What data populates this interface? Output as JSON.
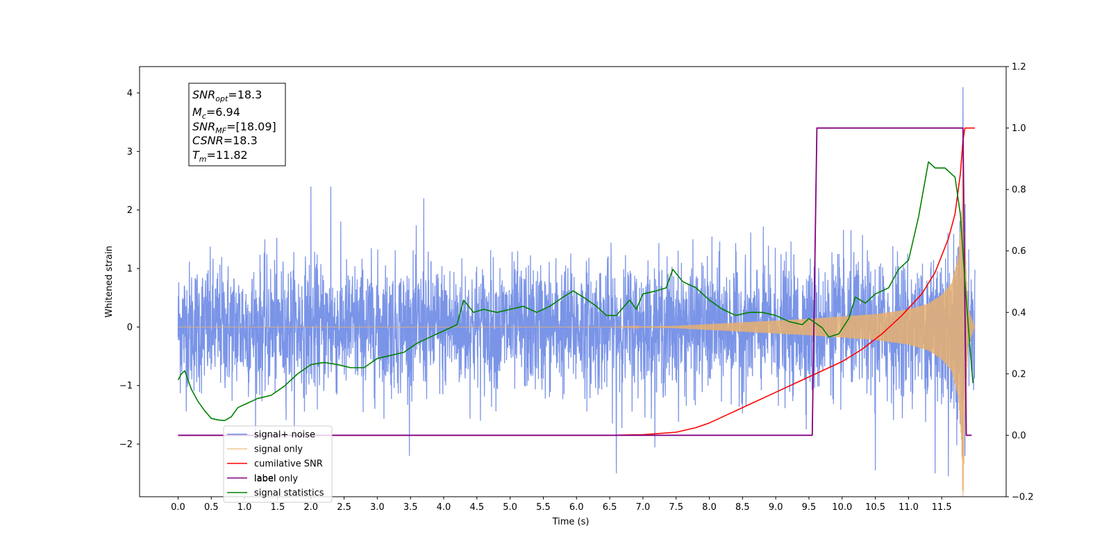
{
  "chart_data": {
    "type": "line",
    "title": "",
    "xlabel": "Time (s)",
    "ylabel": "Whitened strain",
    "xlim": [
      -0.58,
      12.47
    ],
    "ylim": [
      -2.9,
      4.45
    ],
    "y2lim": [
      -0.2,
      1.2
    ],
    "x_ticks": [
      "0.0",
      "0.5",
      "1.0",
      "1.5",
      "2.0",
      "2.5",
      "3.0",
      "3.5",
      "4.0",
      "4.5",
      "5.0",
      "5.5",
      "6.0",
      "6.5",
      "7.0",
      "7.5",
      "8.0",
      "8.5",
      "9.0",
      "9.5",
      "10.0",
      "10.5",
      "11.0",
      "11.5"
    ],
    "y_ticks": [
      "−2",
      "−1",
      "0",
      "1",
      "2",
      "3",
      "4"
    ],
    "y2_ticks": [
      "−0.2",
      "0.0",
      "0.2",
      "0.4",
      "0.6",
      "0.8",
      "1.0",
      "1.2"
    ],
    "grid": false,
    "legend_position": "lower-left",
    "colors": {
      "signal_noise": "#6b88e4",
      "signal_only": "#e8b070",
      "cumulative_snr": "#ff0000",
      "label": "#800080",
      "signal_statistics": "#008000"
    },
    "annotation": {
      "snr_opt": {
        "base": "SNR",
        "sub": "opt",
        "value": "=18.3"
      },
      "mc": {
        "base": "M",
        "sub": "c",
        "value": "=6.94"
      },
      "snr_mf": {
        "base": "SNR",
        "sub": "MF",
        "value": "=[18.09]"
      },
      "csnr": {
        "base": "CSNR",
        "sub": "",
        "value": "=18.3"
      },
      "tm": {
        "base": "T",
        "sub": "m",
        "value": "=11.82"
      }
    },
    "legend": [
      {
        "key": "signal_noise",
        "label": "signal+ noise"
      },
      {
        "key": "signal_only",
        "label": "signal only"
      },
      {
        "key": "cumulative_snr",
        "label": "cumilative SNR"
      },
      {
        "key": "label",
        "label": "label"
      },
      {
        "key": "signal_statistics",
        "label": "signal statistics"
      }
    ],
    "hidden_legend_text": "label only",
    "series": [
      {
        "name": "signal+ noise",
        "axis": "left",
        "description": "Gaussian-like whitened noise plus chirp, sampled densely from 0 to 12 s",
        "t_start": 0.0,
        "t_end": 12.0,
        "noise_std": 0.55,
        "max_peaks": [
          [
            2.0,
            2.4
          ],
          [
            2.3,
            2.4
          ],
          [
            3.7,
            2.2
          ],
          [
            6.6,
            -2.5
          ],
          [
            10.5,
            -2.45
          ],
          [
            11.4,
            -2.5
          ],
          [
            11.6,
            -2.55
          ],
          [
            11.82,
            4.1
          ]
        ]
      },
      {
        "name": "signal only",
        "axis": "left",
        "description": "chirp envelope amplitude vs time",
        "envelope": [
          [
            0.0,
            0.0
          ],
          [
            6.5,
            0.0
          ],
          [
            7.0,
            0.01
          ],
          [
            7.5,
            0.02
          ],
          [
            8.0,
            0.05
          ],
          [
            8.5,
            0.08
          ],
          [
            9.0,
            0.11
          ],
          [
            9.5,
            0.14
          ],
          [
            10.0,
            0.18
          ],
          [
            10.5,
            0.22
          ],
          [
            11.0,
            0.3
          ],
          [
            11.3,
            0.4
          ],
          [
            11.5,
            0.55
          ],
          [
            11.65,
            0.75
          ],
          [
            11.75,
            1.2
          ],
          [
            11.8,
            2.0
          ],
          [
            11.82,
            3.3
          ],
          [
            11.85,
            1.5
          ],
          [
            11.9,
            0.3
          ],
          [
            12.0,
            0.0
          ]
        ]
      },
      {
        "name": "cumilative SNR",
        "axis": "right",
        "points": [
          [
            0.0,
            0.0
          ],
          [
            6.5,
            0.0
          ],
          [
            7.0,
            0.002
          ],
          [
            7.5,
            0.01
          ],
          [
            7.8,
            0.025
          ],
          [
            8.0,
            0.04
          ],
          [
            8.3,
            0.07
          ],
          [
            8.6,
            0.1
          ],
          [
            9.0,
            0.14
          ],
          [
            9.3,
            0.17
          ],
          [
            9.6,
            0.2
          ],
          [
            10.0,
            0.24
          ],
          [
            10.3,
            0.28
          ],
          [
            10.6,
            0.33
          ],
          [
            10.9,
            0.39
          ],
          [
            11.2,
            0.46
          ],
          [
            11.4,
            0.53
          ],
          [
            11.6,
            0.64
          ],
          [
            11.7,
            0.72
          ],
          [
            11.78,
            0.85
          ],
          [
            11.82,
            0.96
          ],
          [
            11.85,
            1.0
          ],
          [
            12.0,
            1.0
          ]
        ]
      },
      {
        "name": "label",
        "axis": "right",
        "points": [
          [
            0.0,
            0.0
          ],
          [
            9.55,
            0.0
          ],
          [
            9.62,
            1.0
          ],
          [
            11.82,
            1.0
          ],
          [
            11.87,
            0.0
          ],
          [
            11.95,
            0.0
          ]
        ]
      },
      {
        "name": "signal statistics",
        "axis": "right",
        "points": [
          [
            0.0,
            0.18
          ],
          [
            0.05,
            0.2
          ],
          [
            0.1,
            0.21
          ],
          [
            0.15,
            0.18
          ],
          [
            0.2,
            0.15
          ],
          [
            0.3,
            0.11
          ],
          [
            0.4,
            0.08
          ],
          [
            0.5,
            0.055
          ],
          [
            0.6,
            0.05
          ],
          [
            0.7,
            0.048
          ],
          [
            0.8,
            0.06
          ],
          [
            0.9,
            0.09
          ],
          [
            1.0,
            0.1
          ],
          [
            1.2,
            0.12
          ],
          [
            1.4,
            0.13
          ],
          [
            1.6,
            0.16
          ],
          [
            1.8,
            0.2
          ],
          [
            2.0,
            0.23
          ],
          [
            2.2,
            0.237
          ],
          [
            2.4,
            0.23
          ],
          [
            2.6,
            0.22
          ],
          [
            2.8,
            0.22
          ],
          [
            3.0,
            0.25
          ],
          [
            3.2,
            0.26
          ],
          [
            3.4,
            0.27
          ],
          [
            3.6,
            0.3
          ],
          [
            3.8,
            0.32
          ],
          [
            4.0,
            0.34
          ],
          [
            4.2,
            0.36
          ],
          [
            4.3,
            0.44
          ],
          [
            4.45,
            0.4
          ],
          [
            4.6,
            0.41
          ],
          [
            4.8,
            0.4
          ],
          [
            5.0,
            0.41
          ],
          [
            5.2,
            0.42
          ],
          [
            5.4,
            0.4
          ],
          [
            5.6,
            0.42
          ],
          [
            5.8,
            0.45
          ],
          [
            5.95,
            0.47
          ],
          [
            6.1,
            0.45
          ],
          [
            6.3,
            0.42
          ],
          [
            6.45,
            0.39
          ],
          [
            6.6,
            0.39
          ],
          [
            6.8,
            0.44
          ],
          [
            6.9,
            0.41
          ],
          [
            7.0,
            0.46
          ],
          [
            7.2,
            0.47
          ],
          [
            7.35,
            0.48
          ],
          [
            7.45,
            0.54
          ],
          [
            7.6,
            0.5
          ],
          [
            7.8,
            0.48
          ],
          [
            8.0,
            0.44
          ],
          [
            8.2,
            0.41
          ],
          [
            8.4,
            0.39
          ],
          [
            8.6,
            0.4
          ],
          [
            8.8,
            0.4
          ],
          [
            9.0,
            0.39
          ],
          [
            9.2,
            0.37
          ],
          [
            9.4,
            0.36
          ],
          [
            9.5,
            0.38
          ],
          [
            9.7,
            0.35
          ],
          [
            9.8,
            0.32
          ],
          [
            9.95,
            0.33
          ],
          [
            10.1,
            0.38
          ],
          [
            10.2,
            0.45
          ],
          [
            10.35,
            0.43
          ],
          [
            10.5,
            0.46
          ],
          [
            10.7,
            0.48
          ],
          [
            10.85,
            0.54
          ],
          [
            11.0,
            0.57
          ],
          [
            11.15,
            0.71
          ],
          [
            11.3,
            0.89
          ],
          [
            11.4,
            0.87
          ],
          [
            11.55,
            0.87
          ],
          [
            11.7,
            0.84
          ],
          [
            11.78,
            0.72
          ],
          [
            11.85,
            0.5
          ],
          [
            11.92,
            0.3
          ],
          [
            11.97,
            0.17
          ]
        ]
      }
    ]
  }
}
